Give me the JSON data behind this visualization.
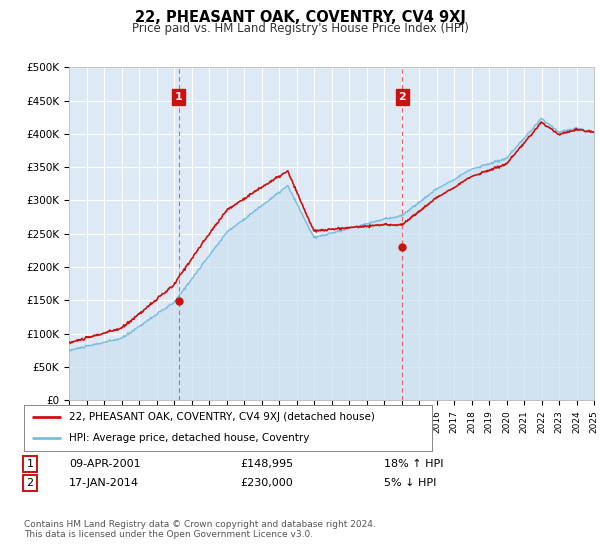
{
  "title": "22, PHEASANT OAK, COVENTRY, CV4 9XJ",
  "subtitle": "Price paid vs. HM Land Registry's House Price Index (HPI)",
  "x_start_year": 1995,
  "x_end_year": 2025,
  "y_min": 0,
  "y_max": 500000,
  "y_ticks": [
    0,
    50000,
    100000,
    150000,
    200000,
    250000,
    300000,
    350000,
    400000,
    450000,
    500000
  ],
  "y_tick_labels": [
    "£0",
    "£50K",
    "£100K",
    "£150K",
    "£200K",
    "£250K",
    "£300K",
    "£350K",
    "£400K",
    "£450K",
    "£500K"
  ],
  "sale1_year": 2001.27,
  "sale1_price": 148995,
  "sale1_label": "1",
  "sale1_date": "09-APR-2001",
  "sale1_pct": "18% ↑ HPI",
  "sale2_year": 2014.05,
  "sale2_price": 230000,
  "sale2_label": "2",
  "sale2_date": "17-JAN-2014",
  "sale2_pct": "5% ↓ HPI",
  "hpi_color": "#7bbde0",
  "hpi_fill_color": "#cce0f0",
  "price_color": "#cc1111",
  "annotation_box_color": "#cc1111",
  "vline_color": "#dd6666",
  "legend_label_red": "22, PHEASANT OAK, COVENTRY, CV4 9XJ (detached house)",
  "legend_label_blue": "HPI: Average price, detached house, Coventry",
  "footer": "Contains HM Land Registry data © Crown copyright and database right 2024.\nThis data is licensed under the Open Government Licence v3.0.",
  "background_color": "#ddeaf5",
  "grid_color": "#ffffff"
}
